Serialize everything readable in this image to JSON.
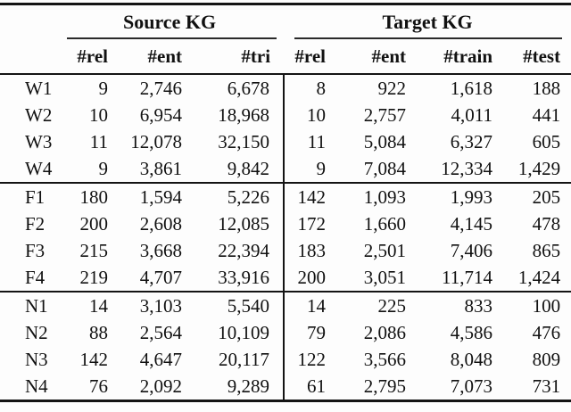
{
  "table": {
    "groups": [
      {
        "label": "Source KG",
        "columns": [
          "#rel",
          "#ent",
          "#tri"
        ]
      },
      {
        "label": "Target KG",
        "columns": [
          "#rel",
          "#ent",
          "#train",
          "#test"
        ]
      }
    ],
    "sub_headers": [
      "#rel",
      "#ent",
      "#tri",
      "#rel",
      "#ent",
      "#train",
      "#test"
    ],
    "row_groups": [
      [
        {
          "label": "W1",
          "source": [
            "9",
            "2,746",
            "6,678"
          ],
          "target": [
            "8",
            "922",
            "1,618",
            "188"
          ]
        },
        {
          "label": "W2",
          "source": [
            "10",
            "6,954",
            "18,968"
          ],
          "target": [
            "10",
            "2,757",
            "4,011",
            "441"
          ]
        },
        {
          "label": "W3",
          "source": [
            "11",
            "12,078",
            "32,150"
          ],
          "target": [
            "11",
            "5,084",
            "6,327",
            "605"
          ]
        },
        {
          "label": "W4",
          "source": [
            "9",
            "3,861",
            "9,842"
          ],
          "target": [
            "9",
            "7,084",
            "12,334",
            "1,429"
          ]
        }
      ],
      [
        {
          "label": "F1",
          "source": [
            "180",
            "1,594",
            "5,226"
          ],
          "target": [
            "142",
            "1,093",
            "1,993",
            "205"
          ]
        },
        {
          "label": "F2",
          "source": [
            "200",
            "2,608",
            "12,085"
          ],
          "target": [
            "172",
            "1,660",
            "4,145",
            "478"
          ]
        },
        {
          "label": "F3",
          "source": [
            "215",
            "3,668",
            "22,394"
          ],
          "target": [
            "183",
            "2,501",
            "7,406",
            "865"
          ]
        },
        {
          "label": "F4",
          "source": [
            "219",
            "4,707",
            "33,916"
          ],
          "target": [
            "200",
            "3,051",
            "11,714",
            "1,424"
          ]
        }
      ],
      [
        {
          "label": "N1",
          "source": [
            "14",
            "3,103",
            "5,540"
          ],
          "target": [
            "14",
            "225",
            "833",
            "100"
          ]
        },
        {
          "label": "N2",
          "source": [
            "88",
            "2,564",
            "10,109"
          ],
          "target": [
            "79",
            "2,086",
            "4,586",
            "476"
          ]
        },
        {
          "label": "N3",
          "source": [
            "142",
            "4,647",
            "20,117"
          ],
          "target": [
            "122",
            "3,566",
            "8,048",
            "809"
          ]
        },
        {
          "label": "N4",
          "source": [
            "76",
            "2,092",
            "9,289"
          ],
          "target": [
            "61",
            "2,795",
            "7,073",
            "731"
          ]
        }
      ]
    ],
    "colors": {
      "rule": "#141414",
      "text": "#111111",
      "background": "#fdfdfd"
    }
  }
}
